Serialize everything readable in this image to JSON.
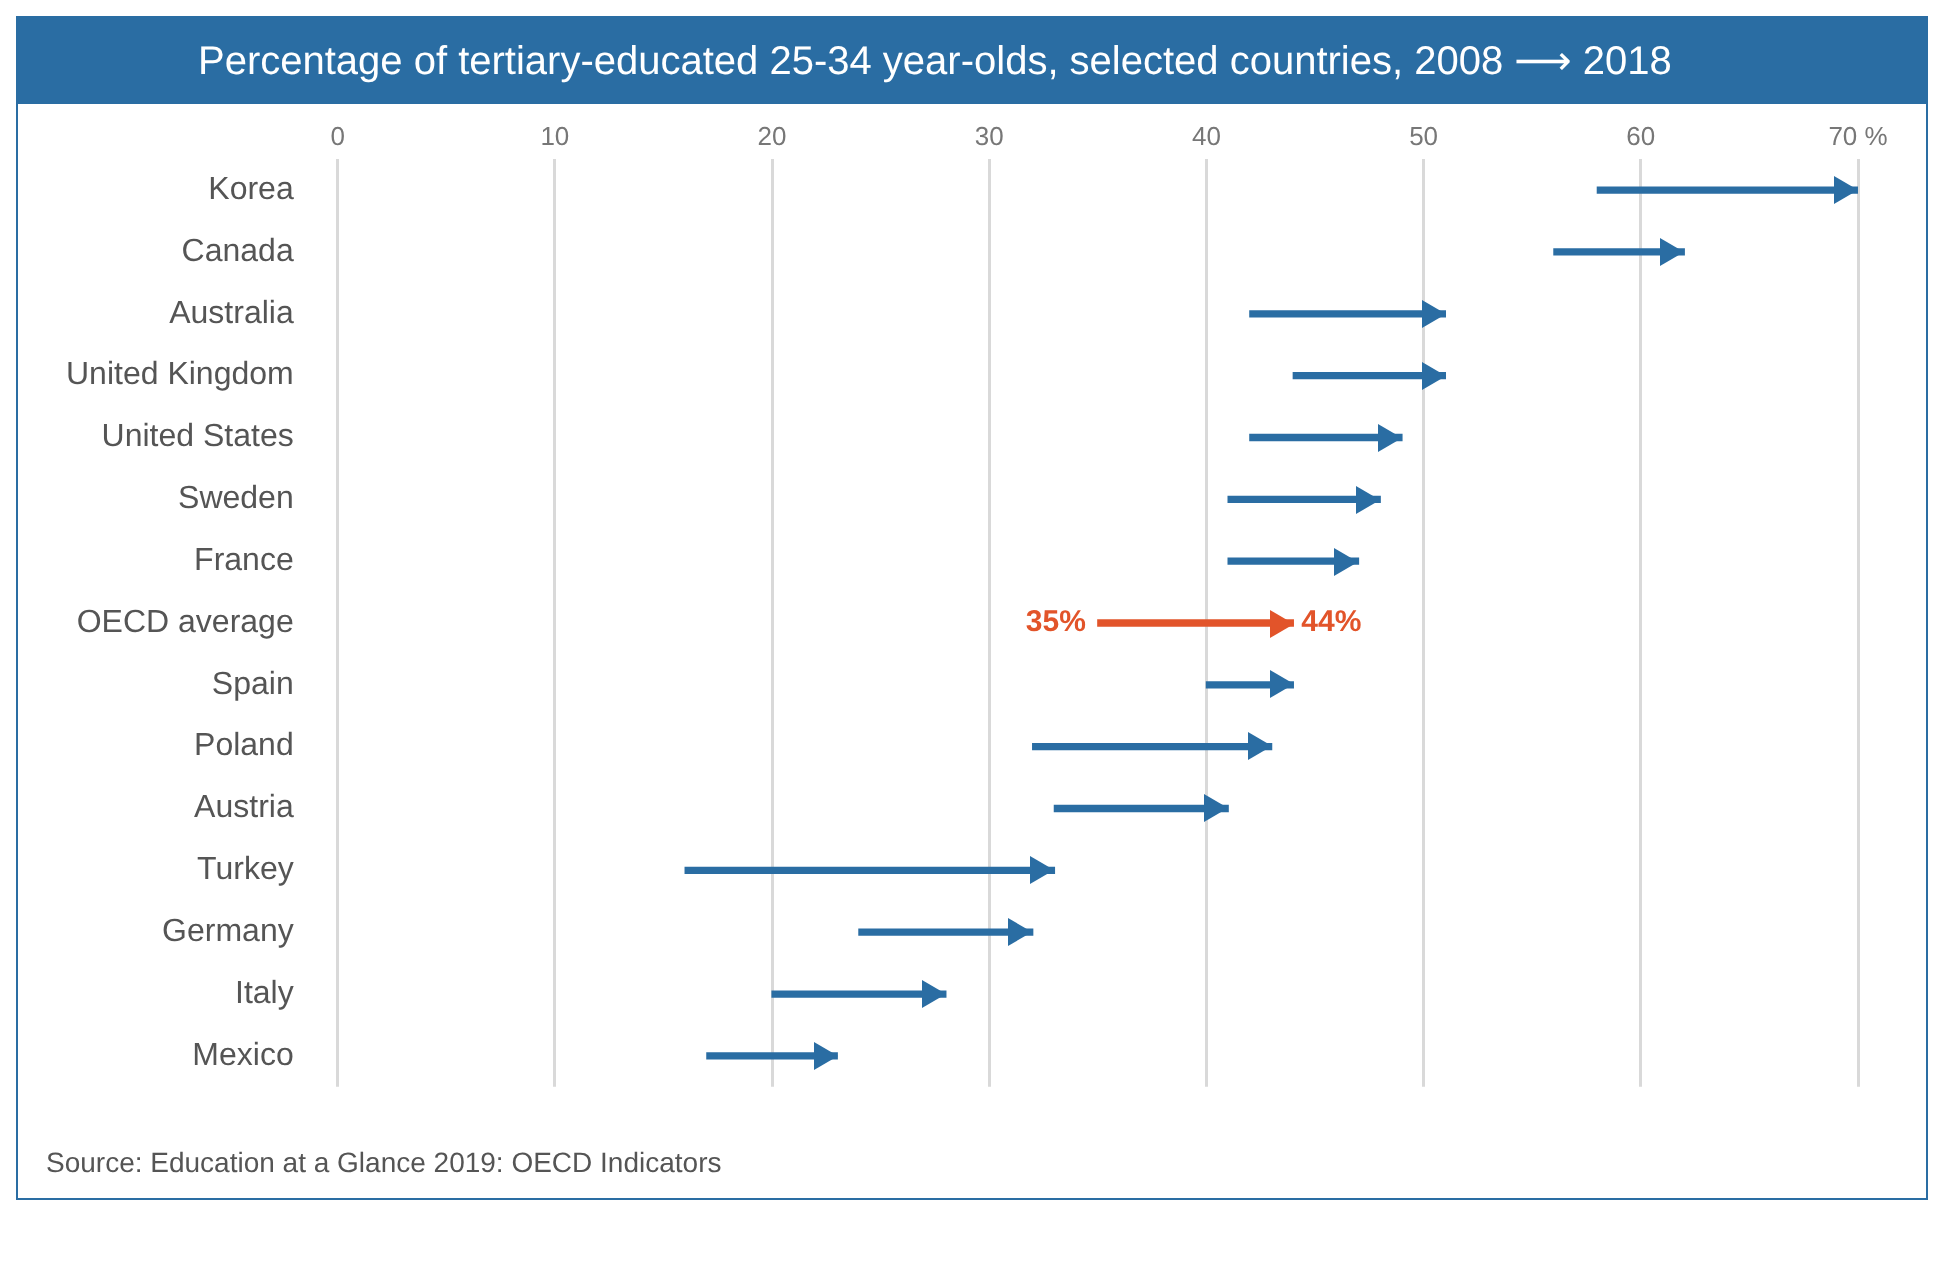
{
  "chart_data": {
    "type": "bar",
    "orientation": "horizontal",
    "title": "Percentage of tertiary-educated 25-34 year-olds, selected countries, 2008 ⟶ 2018",
    "categories": [
      "Korea",
      "Canada",
      "Australia",
      "United Kingdom",
      "United States",
      "Sweden",
      "France",
      "OECD average",
      "Spain",
      "Poland",
      "Austria",
      "Turkey",
      "Germany",
      "Italy",
      "Mexico"
    ],
    "base": [
      58,
      56,
      42,
      44,
      42,
      41,
      41,
      35,
      40,
      32,
      33,
      16,
      24,
      20,
      17
    ],
    "values": [
      12,
      6,
      9,
      7,
      7,
      7,
      6,
      9,
      4,
      11,
      8,
      17,
      8,
      8,
      6
    ],
    "colors": [
      "#2a6da3",
      "#2a6da3",
      "#2a6da3",
      "#2a6da3",
      "#2a6da3",
      "#2a6da3",
      "#2a6da3",
      "#e2542a",
      "#2a6da3",
      "#2a6da3",
      "#2a6da3",
      "#2a6da3",
      "#2a6da3",
      "#2a6da3",
      "#2a6da3"
    ],
    "xlim": [
      0,
      70
    ],
    "xticks": [
      0,
      10,
      20,
      30,
      40,
      50,
      60,
      {
        "value": 70,
        "label": "70 %"
      }
    ],
    "grid": "x",
    "annotations": [
      {
        "text": "35%",
        "x": 35,
        "y": "OECD average"
      },
      {
        "text": "44%",
        "x": 44,
        "y": "OECD average"
      },
      "Source: Education at a Glance 2019: OECD Indicators"
    ]
  }
}
